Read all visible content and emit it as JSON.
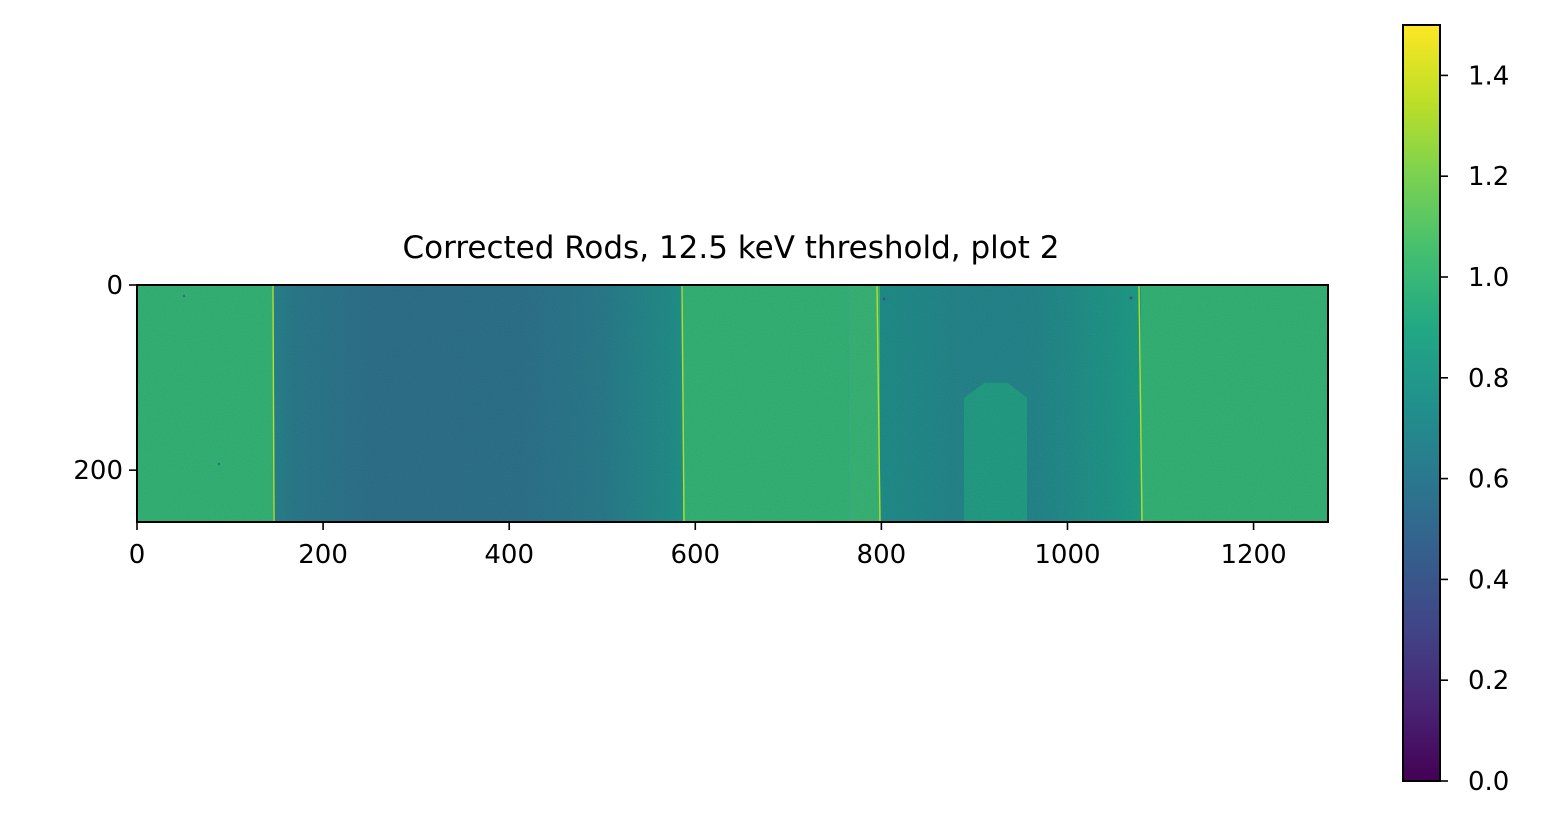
{
  "chart_data": {
    "type": "heatmap",
    "title": "Corrected Rods, 12.5 keV threshold, plot 2",
    "xlabel": "",
    "ylabel": "",
    "xlim": [
      0,
      1280
    ],
    "ylim": [
      256,
      0
    ],
    "x_ticks": [
      0,
      200,
      400,
      600,
      800,
      1000,
      1200
    ],
    "y_ticks": [
      0,
      200
    ],
    "colorbar": {
      "colormap": "viridis",
      "vmin": 0.0,
      "vmax": 1.5,
      "ticks": [
        "0.0",
        "0.2",
        "0.4",
        "0.6",
        "0.8",
        "1.0",
        "1.2",
        "1.4"
      ],
      "tick_values": [
        0.0,
        0.2,
        0.4,
        0.6,
        0.8,
        1.0,
        1.2,
        1.4
      ]
    },
    "regions": [
      {
        "x_range": [
          0,
          147
        ],
        "value": 1.05
      },
      {
        "x_range": [
          147,
          588
        ],
        "value": 0.68
      },
      {
        "x_range": [
          588,
          798
        ],
        "value": 1.04
      },
      {
        "x_range": [
          798,
          1080
        ],
        "value": 0.78
      },
      {
        "x_range": [
          1080,
          1280
        ],
        "value": 1.05
      }
    ],
    "grid": false
  }
}
